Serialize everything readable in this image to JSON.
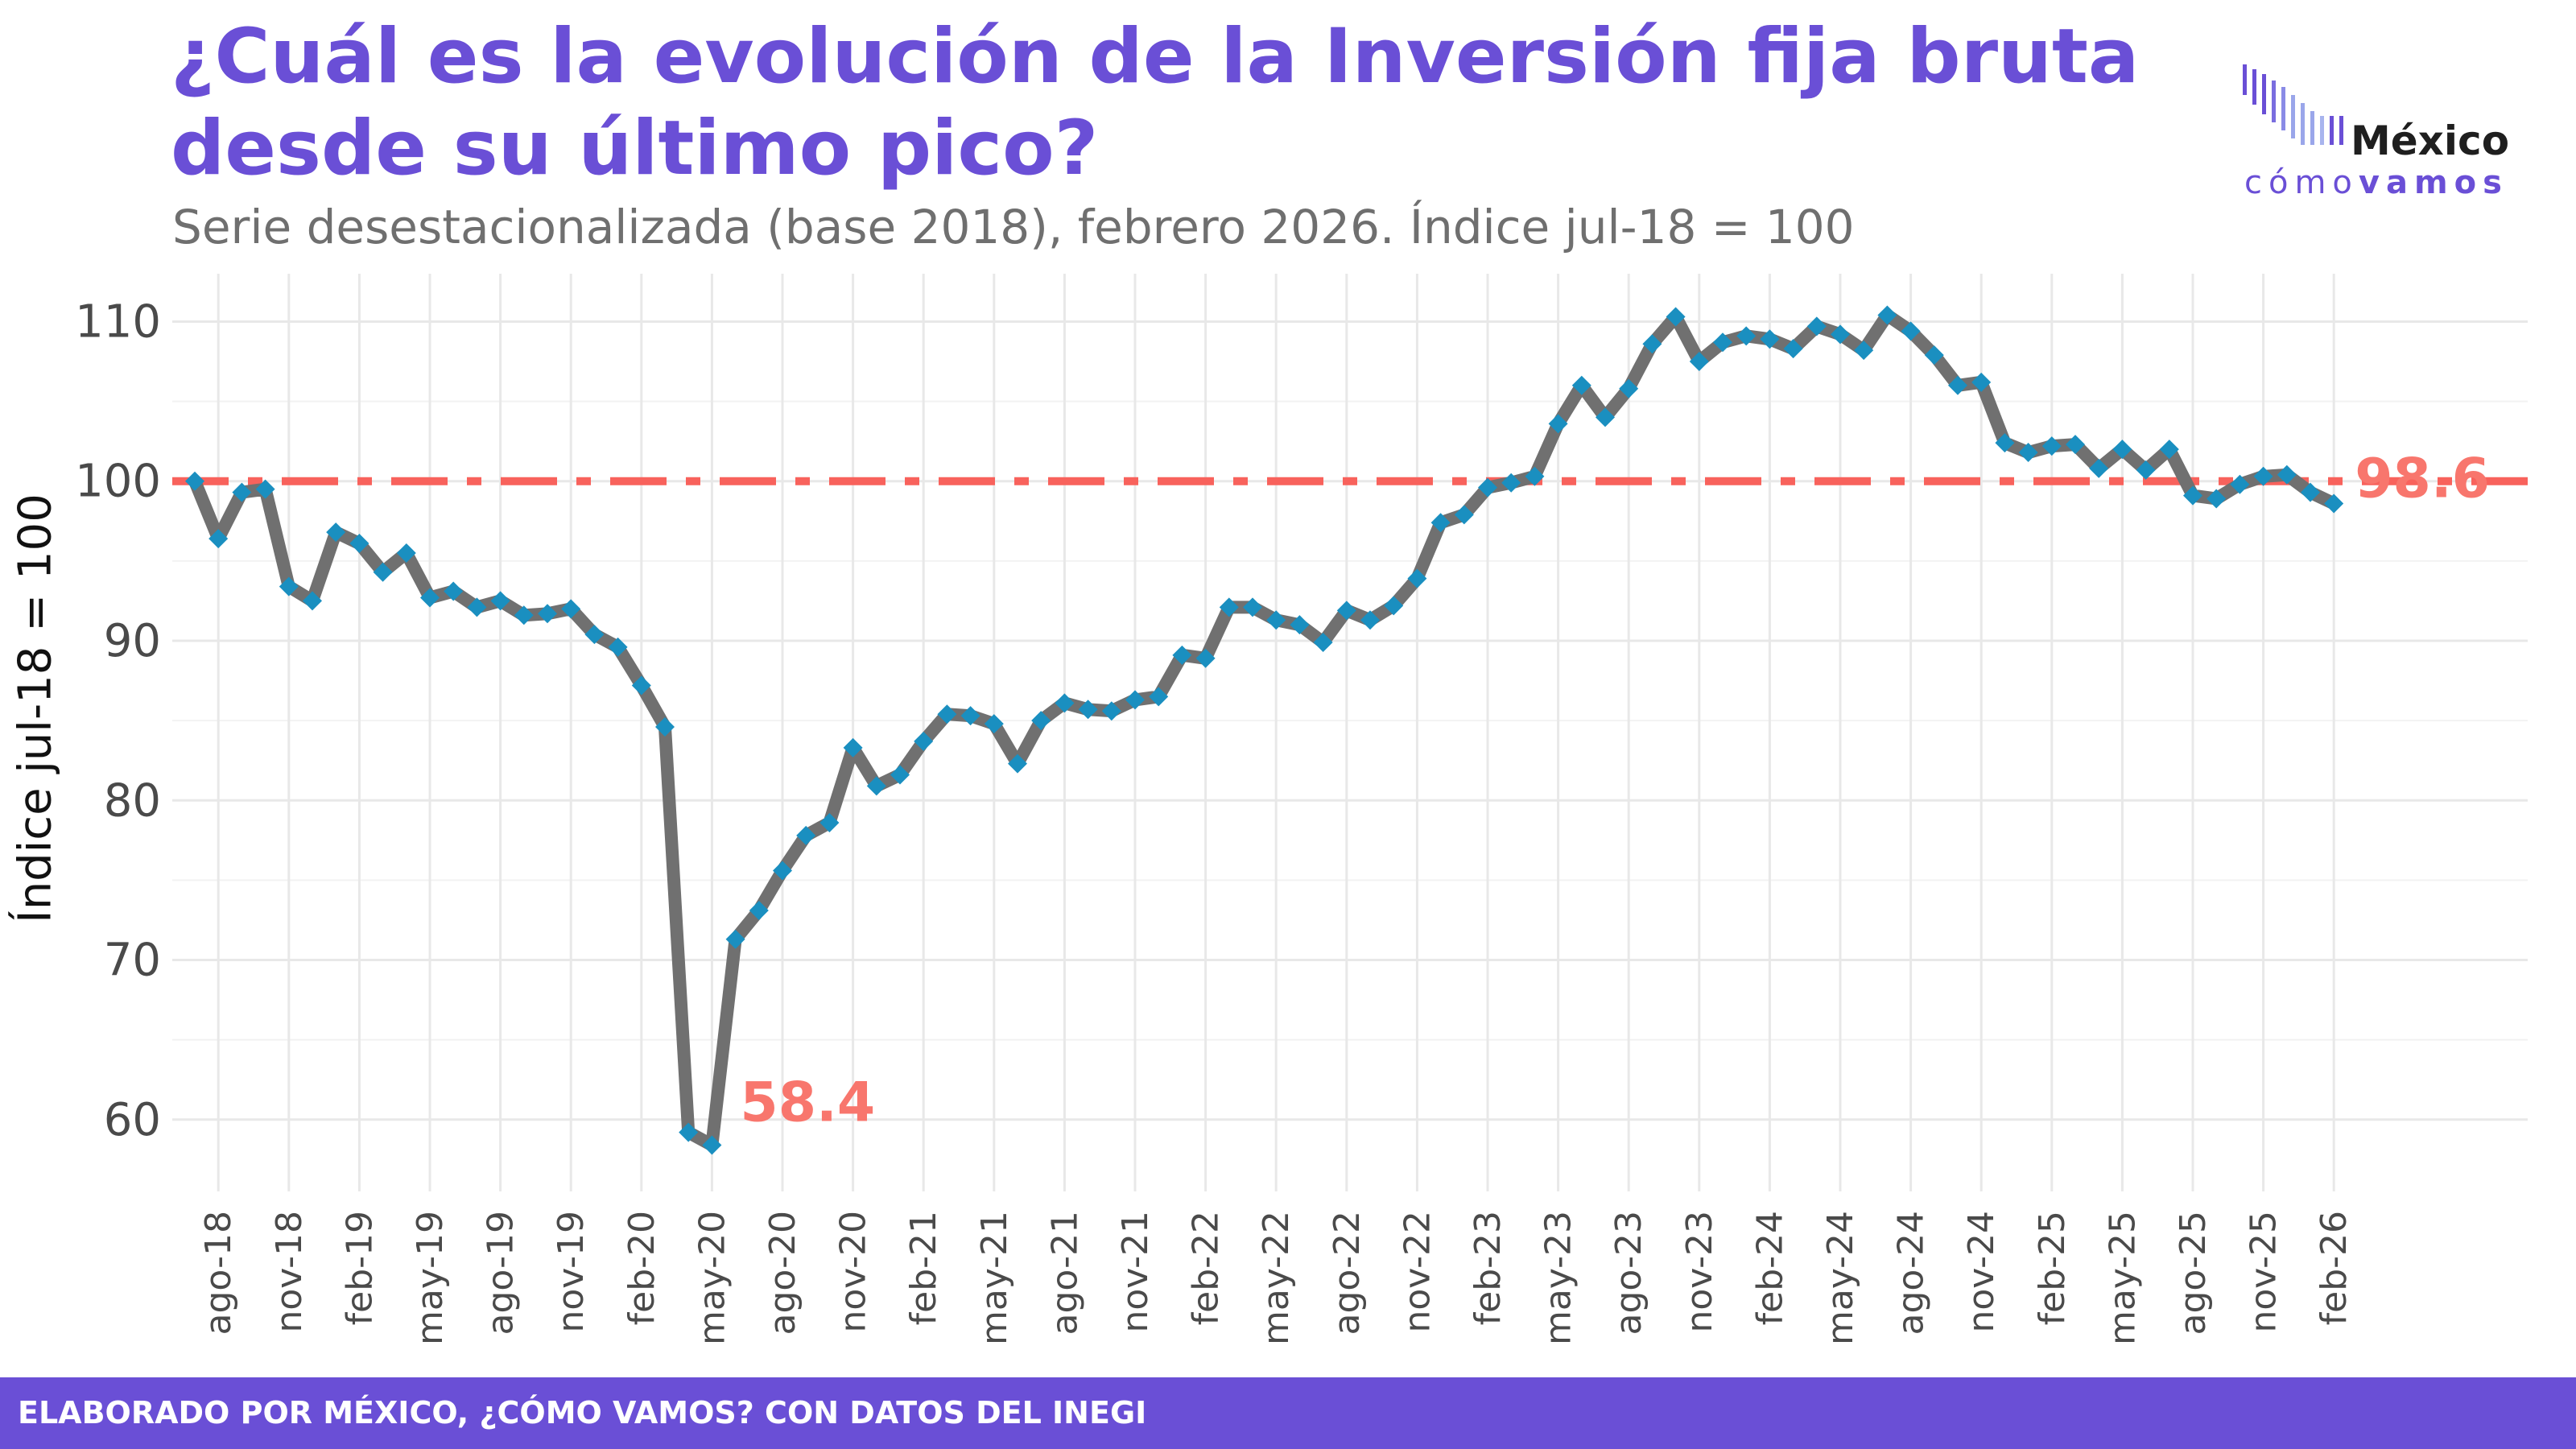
{
  "title": "¿Cuál es la evolución de la Inversión fija bruta desde su último pico?",
  "subtitle": "Serie desestacionalizada (base 2018), febrero 2026. Índice jul-18 = 100",
  "logo": {
    "name": "México",
    "tag_left": "cómo",
    "tag_right": "vamos"
  },
  "footer": "ELABORADO POR MÉXICO, ¿CÓMO VAMOS? CON DATOS DEL INEGI",
  "colors": {
    "title": "#6a4fd6",
    "line": "#707070",
    "marker": "#1a8fc0",
    "reference": "#f8625c",
    "annotation": "#f8766d",
    "grid": "#e8e8e8"
  },
  "chart_data": {
    "type": "line",
    "title": "¿Cuál es la evolución de la Inversión fija bruta desde su último pico?",
    "ylabel": "Índice jul-18 = 100",
    "xlabel": "",
    "ylim": [
      55.5,
      113
    ],
    "yticks": [
      60,
      70,
      80,
      90,
      100,
      110
    ],
    "grid": true,
    "x_start": "jul-18",
    "x_end": "feb-26",
    "x_ticks": [
      "ago-18",
      "nov-18",
      "feb-19",
      "may-19",
      "ago-19",
      "nov-19",
      "feb-20",
      "may-20",
      "ago-20",
      "nov-20",
      "feb-21",
      "may-21",
      "ago-21",
      "nov-21",
      "feb-22",
      "may-22",
      "ago-22",
      "nov-22",
      "feb-23",
      "may-23",
      "ago-23",
      "nov-23",
      "feb-24",
      "may-24",
      "ago-24",
      "nov-24",
      "feb-25",
      "may-25",
      "ago-25",
      "nov-25",
      "feb-26"
    ],
    "reference_line": 100,
    "annotations": [
      {
        "text": "58.4",
        "index": 22
      },
      {
        "text": "98.6",
        "index": 91
      }
    ],
    "values": [
      100.0,
      96.4,
      99.3,
      99.5,
      93.4,
      92.5,
      96.8,
      96.1,
      94.3,
      95.5,
      92.7,
      93.1,
      92.1,
      92.5,
      91.6,
      91.7,
      92.0,
      90.4,
      89.6,
      87.2,
      84.6,
      59.2,
      58.4,
      71.3,
      73.1,
      75.6,
      77.8,
      78.6,
      83.3,
      80.9,
      81.6,
      83.7,
      85.4,
      85.3,
      84.8,
      82.3,
      85.0,
      86.1,
      85.7,
      85.6,
      86.3,
      86.5,
      89.1,
      88.9,
      92.1,
      92.1,
      91.3,
      91.0,
      89.9,
      91.9,
      91.3,
      92.2,
      93.9,
      97.4,
      97.9,
      99.6,
      99.9,
      100.3,
      103.6,
      106.0,
      104.0,
      105.8,
      108.6,
      110.3,
      107.5,
      108.7,
      109.1,
      108.9,
      108.3,
      109.7,
      109.2,
      108.2,
      110.4,
      109.4,
      107.9,
      106.0,
      106.2,
      102.4,
      101.8,
      102.2,
      102.3,
      100.8,
      102.0,
      100.7,
      102.0,
      99.1,
      98.9,
      99.8,
      100.3,
      100.4,
      99.3,
      98.6
    ]
  }
}
